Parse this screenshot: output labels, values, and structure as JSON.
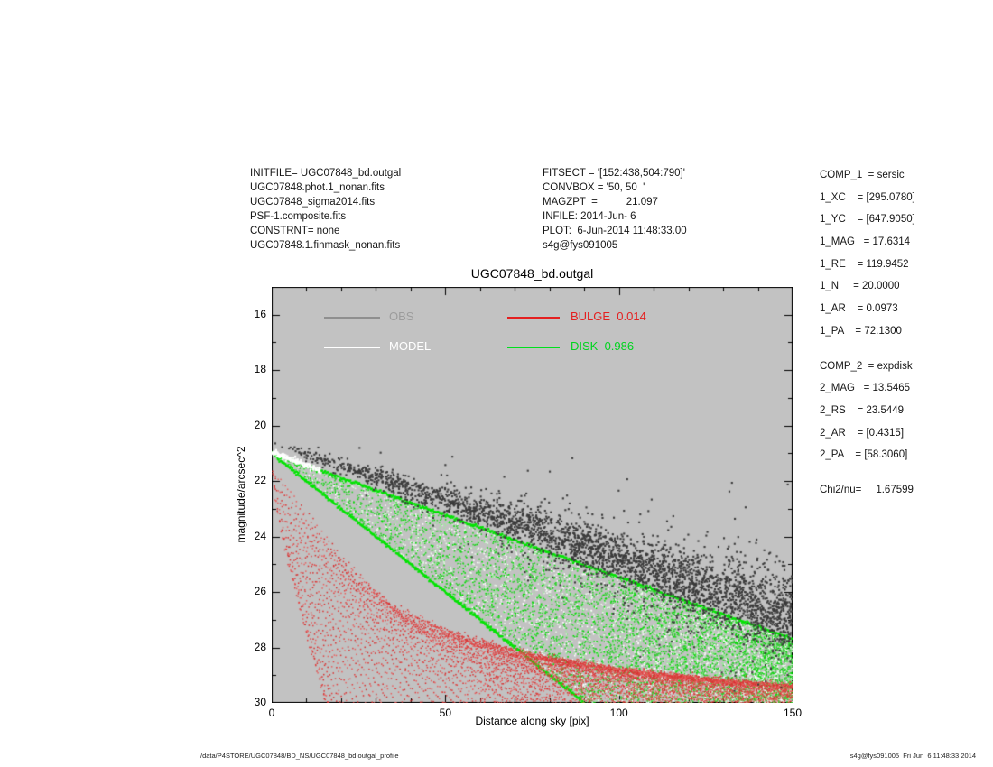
{
  "info_left": {
    "lines": [
      "INITFILE= UGC07848_bd.outgal",
      "UGC07848.phot.1_nonan.fits",
      "UGC07848_sigma2014.fits",
      "PSF-1.composite.fits",
      "CONSTRNT= none",
      "UGC07848.1.finmask_nonan.fits"
    ]
  },
  "info_mid": {
    "lines": [
      "FITSECT = '[152:438,504:790]'",
      "CONVBOX = '50, 50  '",
      "MAGZPT  =          21.097",
      "INFILE: 2014-Jun- 6",
      "PLOT:  6-Jun-2014 11:48:33.00",
      "s4g@fys091005"
    ]
  },
  "params_right": {
    "lines": [
      {
        "text": "COMP_1  = sersic",
        "gap": false
      },
      {
        "text": "1_XC    = [295.0780]",
        "gap": false
      },
      {
        "text": "1_YC    = [647.9050]",
        "gap": false
      },
      {
        "text": "1_MAG   = 17.6314",
        "gap": false
      },
      {
        "text": "1_RE    = 119.9452",
        "gap": false
      },
      {
        "text": "1_N     = 20.0000",
        "gap": false
      },
      {
        "text": "1_AR    = 0.0973",
        "gap": false
      },
      {
        "text": "1_PA    = 72.1300",
        "gap": false
      },
      {
        "text": "COMP_2  = expdisk",
        "gap": true
      },
      {
        "text": "2_MAG   = 13.5465",
        "gap": false
      },
      {
        "text": "2_RS    = 23.5449",
        "gap": false
      },
      {
        "text": "2_AR    = [0.4315]",
        "gap": false
      },
      {
        "text": "2_PA    = [58.3060]",
        "gap": false
      },
      {
        "text": "Chi2/nu=     1.67599",
        "gap": true
      }
    ]
  },
  "footer": {
    "left": "/data/P4STORE/UGC07848/BD_NS/UGC07848_bd.outgal_profile",
    "right": "s4g@fys091005  Fri Jun  6 11:48:33 2014"
  },
  "chart_data": {
    "type": "scatter",
    "title": "UGC07848_bd.outgal",
    "xlabel": "Distance along sky [pix]",
    "ylabel": "magnitude/arcsec^2",
    "xlim": [
      0,
      150
    ],
    "ylim": [
      15,
      30
    ],
    "y_axis_reversed_note": "magnitude axis: 15 bright at top, 30 faint at bottom",
    "xticks": [
      0,
      50,
      100,
      150
    ],
    "yticks": [
      16,
      18,
      20,
      22,
      24,
      26,
      28,
      30
    ],
    "x_minor_step": 10,
    "y_minor_step": 1,
    "background": "#c2c2c2",
    "frame_color": "#000000",
    "grid": false,
    "legend_position": "top-inside",
    "seed": 42,
    "series": [
      {
        "name": "DISK",
        "legend_label": "DISK  0.986",
        "weight": 0.986,
        "color": "#00e000",
        "legend_color": "#00e01e",
        "legend_text_color": "#00d41e",
        "gen": {
          "kind": "wedge",
          "n": 9000,
          "apex_mag": 21.0,
          "upper_slope": 0.0447,
          "lower_slope": 0.1,
          "m_max": 30,
          "palette": [
            "#2fcf2f",
            "#00dd00",
            "#9fe89f",
            "#e8f8e8",
            "#ffffff"
          ],
          "weights": [
            0.34,
            0.2,
            0.18,
            0.14,
            0.14
          ],
          "size": 1.6,
          "edges": {
            "color": "#00e400",
            "size": 2.2,
            "upper_end": [
              150,
              27.7
            ],
            "lower_end": [
              90,
              30
            ]
          }
        }
      },
      {
        "name": "BULGE",
        "legend_label": "BULGE  0.014",
        "weight": 0.014,
        "color": "#e03535",
        "legend_color": "#e41f1f",
        "legend_text_color": "#e41f1f",
        "gen": {
          "kind": "fan",
          "curves": 60,
          "xs_max": 112,
          "xs_pow": 1.8,
          "reach0": 16,
          "reach_k": 1.15,
          "shape_pow": 0.8,
          "dx": 0.55,
          "jitter": 0.06,
          "size": 1.5,
          "spine": [
            [
              0,
              21.7
            ],
            [
              5,
              22.35
            ],
            [
              10,
              23.1
            ],
            [
              20,
              24.7
            ],
            [
              33,
              26.3
            ],
            [
              50,
              27.35
            ],
            [
              70,
              28.1
            ],
            [
              100,
              28.8
            ],
            [
              125,
              29.1
            ],
            [
              150,
              29.35
            ]
          ],
          "extra": {
            "n": 700,
            "x0": 60,
            "x1": 150,
            "m_floor": 28.2,
            "size": 1.3
          },
          "palette": [
            "#e04040",
            "#d83030",
            "#e86060"
          ]
        }
      },
      {
        "name": "OBS",
        "legend_label": "OBS",
        "color": "#3b3b3b",
        "legend_color": "#8f8f8f",
        "legend_text_color": "#9c9c9c",
        "gen": {
          "kind": "band",
          "n": 3200,
          "x_pow": 0.55,
          "c0": 20.6,
          "slope": 0.042,
          "sig0": 0.07,
          "sig1": 0.68,
          "sig_pow": 1.15,
          "out_frac": 0.13,
          "out_mult": 2.6,
          "out_bias": 0.25,
          "size": 2.1
        }
      },
      {
        "name": "MODEL",
        "legend_label": "MODEL",
        "color": "#ffffff",
        "legend_color": "#ffffff",
        "legend_text_color": "#ffffff",
        "gen": {
          "kind": "strip",
          "n": 220,
          "x_max": 14,
          "m0": 20.95,
          "slope": 0.048,
          "sig": 0.05,
          "size": 2.0
        }
      }
    ],
    "legend_layout": {
      "rows_y": [
        33,
        66
      ],
      "col1_line_x": [
        58,
        120
      ],
      "col1_text_x": 130,
      "col2_line_x": [
        261,
        319
      ],
      "col2_text_x": 331
    }
  }
}
